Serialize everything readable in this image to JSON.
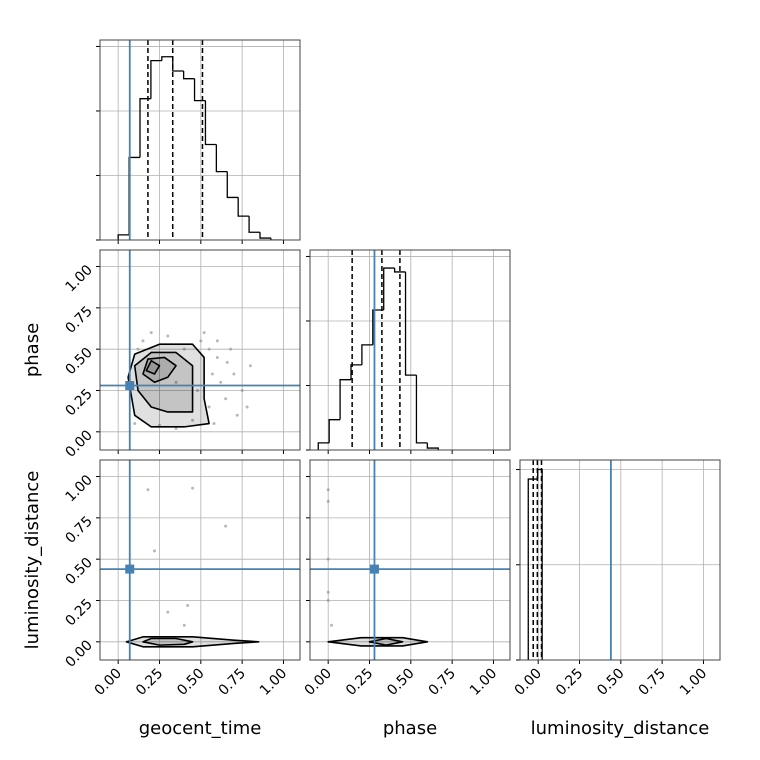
{
  "chart_data": [
    {
      "type": "histogram",
      "bins": [
        0,
        0.066,
        0.132,
        0.198,
        0.264,
        0.33,
        0.396,
        0.462,
        0.528,
        0.594,
        0.66,
        0.726,
        0.792,
        0.858,
        0.924,
        0.99
      ],
      "values": [
        0.08,
        1.28,
        2.19,
        2.78,
        2.84,
        2.62,
        2.5,
        2.16,
        1.48,
        1.06,
        0.66,
        0.37,
        0.12,
        0.03,
        0
      ],
      "quantiles": [
        0.18,
        0.33,
        0.51
      ],
      "truth": 0.07,
      "color": "#000000",
      "truth_color": "#4682b4",
      "xlim": [
        -0.11,
        1.1
      ],
      "xticks": [
        0,
        0.25,
        0.5,
        0.75,
        1
      ],
      "ylim": [
        0,
        3.1
      ],
      "yticks": [
        0,
        1,
        2,
        3
      ],
      "grid": true
    },
    {
      "type": "scatter",
      "x": [
        0.1,
        0.15,
        0.2,
        0.3,
        0.35,
        0.4,
        0.5,
        0.55,
        0.6,
        0.62,
        0.65,
        0.7,
        0.72,
        0.75,
        0.8,
        0.58,
        0.52,
        0.45,
        0.25,
        0.12,
        0.6,
        0.68,
        0.55,
        0.48,
        0.35,
        0.78,
        0.66,
        0.57
      ],
      "y": [
        0.05,
        0.55,
        0.6,
        0.58,
        0.02,
        0.5,
        0.55,
        0.5,
        0.45,
        0.3,
        0.2,
        0.35,
        0.1,
        0.25,
        0.4,
        0.05,
        0.6,
        0.07,
        0.04,
        0.5,
        0.55,
        0.5,
        0.15,
        0.25,
        0.3,
        0.15,
        0.42,
        0.35
      ],
      "contours": [
        {
          "x": [
            0.1,
            0.2,
            0.4,
            0.55,
            0.52,
            0.52,
            0.45,
            0.25,
            0.1,
            0.06
          ],
          "y": [
            0.1,
            0.03,
            0.03,
            0.05,
            0.2,
            0.45,
            0.53,
            0.53,
            0.47,
            0.33
          ]
        },
        {
          "x": [
            0.12,
            0.2,
            0.3,
            0.45,
            0.45,
            0.35,
            0.2,
            0.1
          ],
          "y": [
            0.25,
            0.15,
            0.12,
            0.12,
            0.4,
            0.48,
            0.48,
            0.4
          ]
        },
        {
          "x": [
            0.15,
            0.22,
            0.3,
            0.35,
            0.28,
            0.18
          ],
          "y": [
            0.35,
            0.3,
            0.33,
            0.4,
            0.45,
            0.44
          ]
        },
        {
          "x": [
            0.17,
            0.22,
            0.25,
            0.2
          ],
          "y": [
            0.37,
            0.35,
            0.4,
            0.43
          ]
        }
      ],
      "truth": {
        "x": 0.07,
        "y": 0.28
      },
      "color": "#000000",
      "truth_color": "#4682b4",
      "xlim": [
        -0.11,
        1.1
      ],
      "xticks": [
        0,
        0.25,
        0.5,
        0.75,
        1
      ],
      "ylim": [
        -0.11,
        1.1
      ],
      "yticks": [
        {
          "value": 0,
          "label": "0.00"
        },
        {
          "value": 0.25,
          "label": "0.25"
        },
        {
          "value": 0.5,
          "label": "0.50"
        },
        {
          "value": 0.75,
          "label": "0.75"
        },
        {
          "value": 1,
          "label": "1.00"
        }
      ],
      "ylabel": "phase",
      "grid": true
    },
    {
      "type": "histogram",
      "bins": [
        -0.06,
        0.006,
        0.072,
        0.138,
        0.204,
        0.27,
        0.336,
        0.402,
        0.468,
        0.534,
        0.6,
        0.666
      ],
      "values": [
        0.11,
        0.47,
        1.09,
        1.32,
        1.63,
        2.17,
        2.82,
        2.76,
        1.16,
        0.11,
        0.03
      ],
      "quantiles": [
        0.145,
        0.325,
        0.434
      ],
      "truth": 0.28,
      "color": "#000000",
      "truth_color": "#4682b4",
      "xlim": [
        -0.11,
        1.1
      ],
      "xticks": [
        0,
        0.25,
        0.5,
        0.75,
        1
      ],
      "ylim": [
        0,
        3.1
      ],
      "yticks": [
        0,
        1,
        2,
        3
      ],
      "grid": true
    },
    {
      "type": "scatter",
      "x": [
        0.18,
        0.45,
        0.22,
        0.3,
        0.42,
        0.65,
        0.4
      ],
      "y": [
        0.92,
        0.93,
        0.55,
        0.18,
        0.22,
        0.7,
        0.1
      ],
      "contours": [
        {
          "x": [
            0.05,
            0.15,
            0.45,
            0.7,
            0.85,
            0.7,
            0.45,
            0.15
          ],
          "y": [
            0,
            -0.03,
            -0.03,
            -0.01,
            0,
            0.01,
            0.03,
            0.03
          ]
        },
        {
          "x": [
            0.15,
            0.25,
            0.4,
            0.45,
            0.35,
            0.2
          ],
          "y": [
            0,
            -0.02,
            -0.015,
            0,
            0.02,
            0.02
          ]
        }
      ],
      "truth": {
        "x": 0.07,
        "y": 0.44
      },
      "color": "#000000",
      "truth_color": "#4682b4",
      "xlim": [
        -0.11,
        1.1
      ],
      "xticks": [
        {
          "value": 0,
          "label": "0.00"
        },
        {
          "value": 0.25,
          "label": "0.25"
        },
        {
          "value": 0.5,
          "label": "0.50"
        },
        {
          "value": 0.75,
          "label": "0.75"
        },
        {
          "value": 1,
          "label": "1.00"
        }
      ],
      "ylim": [
        -0.11,
        1.1
      ],
      "yticks": [
        {
          "value": 0,
          "label": "0.00"
        },
        {
          "value": 0.25,
          "label": "0.25"
        },
        {
          "value": 0.5,
          "label": "0.50"
        },
        {
          "value": 0.75,
          "label": "0.75"
        },
        {
          "value": 1,
          "label": "1.00"
        }
      ],
      "xlabel": "geocent_time",
      "ylabel": "luminosity_distance",
      "grid": true
    },
    {
      "type": "scatter",
      "x": [
        0,
        0,
        0,
        0,
        0.02,
        0
      ],
      "y": [
        0.92,
        0.85,
        0.5,
        0.25,
        0.1,
        0.3
      ],
      "contours": [
        {
          "x": [
            0,
            0.2,
            0.45,
            0.6,
            0.45,
            0.2
          ],
          "y": [
            0,
            -0.025,
            -0.025,
            0,
            0.025,
            0.025
          ]
        },
        {
          "x": [
            0.25,
            0.35,
            0.45,
            0.35
          ],
          "y": [
            0,
            -0.02,
            0,
            0.02
          ]
        }
      ],
      "truth": {
        "x": 0.28,
        "y": 0.44
      },
      "color": "#000000",
      "truth_color": "#4682b4",
      "xlim": [
        -0.11,
        1.1
      ],
      "xticks": [
        {
          "value": 0,
          "label": "0.00"
        },
        {
          "value": 0.25,
          "label": "0.25"
        },
        {
          "value": 0.5,
          "label": "0.50"
        },
        {
          "value": 0.75,
          "label": "0.75"
        },
        {
          "value": 1,
          "label": "1.00"
        }
      ],
      "ylim": [
        -0.11,
        1.1
      ],
      "yticks": [
        0,
        0.25,
        0.5,
        0.75,
        1
      ],
      "xlabel": "phase",
      "grid": true
    },
    {
      "type": "histogram",
      "bins": [
        -0.06,
        -0.003,
        0.024
      ],
      "values": [
        0.95,
        1.0
      ],
      "quantiles": [
        -0.03,
        -0.005,
        0.02
      ],
      "truth": 0.44,
      "color": "#000000",
      "truth_color": "#4682b4",
      "xlim": [
        -0.11,
        1.1
      ],
      "xticks": [
        {
          "value": 0,
          "label": "0.00"
        },
        {
          "value": 0.25,
          "label": "0.25"
        },
        {
          "value": 0.5,
          "label": "0.50"
        },
        {
          "value": 0.75,
          "label": "0.75"
        },
        {
          "value": 1,
          "label": "1.00"
        }
      ],
      "ylim": [
        0,
        1.05
      ],
      "yticks": [
        0,
        0.5,
        1
      ],
      "xlabel": "luminosity_distance",
      "grid": true
    }
  ]
}
